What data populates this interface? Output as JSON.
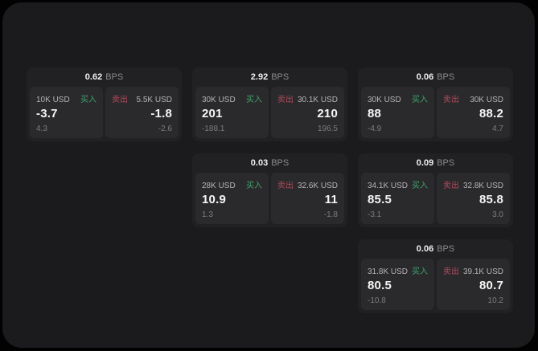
{
  "colors": {
    "background": "#020202",
    "window": "#1b1b1d",
    "card": "#212123",
    "tile": "#2a2a2c",
    "buy_green": "#3fa26a",
    "sell_red": "#b04a5c"
  },
  "cards": [
    {
      "spread": "0.62",
      "unit": "BPS",
      "buy": {
        "amount": "10K USD",
        "label": "买入",
        "price": "-3.7",
        "sub": "4.3"
      },
      "sell": {
        "label": "卖出",
        "amount": "5.5K USD",
        "price": "-1.8",
        "sub": "-2.6"
      }
    },
    {
      "spread": "2.92",
      "unit": "BPS",
      "buy": {
        "amount": "30K USD",
        "label": "买入",
        "price": "201",
        "sub": "-188.1"
      },
      "sell": {
        "label": "卖出",
        "amount": "30.1K USD",
        "price": "210",
        "sub": "196.5"
      }
    },
    {
      "spread": "0.06",
      "unit": "BPS",
      "buy": {
        "amount": "30K USD",
        "label": "买入",
        "price": "88",
        "sub": "-4.9"
      },
      "sell": {
        "label": "卖出",
        "amount": "30K USD",
        "price": "88.2",
        "sub": "4.7"
      }
    },
    {
      "spread": "0.03",
      "unit": "BPS",
      "buy": {
        "amount": "28K USD",
        "label": "买入",
        "price": "10.9",
        "sub": "1.3"
      },
      "sell": {
        "label": "卖出",
        "amount": "32.6K USD",
        "price": "11",
        "sub": "-1.8"
      }
    },
    {
      "spread": "0.09",
      "unit": "BPS",
      "buy": {
        "amount": "34.1K USD",
        "label": "买入",
        "price": "85.5",
        "sub": "-3.1"
      },
      "sell": {
        "label": "卖出",
        "amount": "32.8K USD",
        "price": "85.8",
        "sub": "3.0"
      }
    },
    {
      "spread": "0.06",
      "unit": "BPS",
      "buy": {
        "amount": "31.8K USD",
        "label": "买入",
        "price": "80.5",
        "sub": "-10.8"
      },
      "sell": {
        "label": "卖出",
        "amount": "39.1K USD",
        "price": "80.7",
        "sub": "10.2"
      }
    }
  ]
}
